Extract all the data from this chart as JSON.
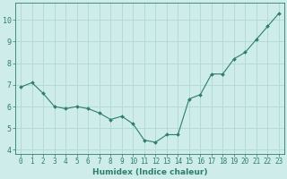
{
  "x": [
    0,
    1,
    2,
    3,
    4,
    5,
    6,
    7,
    8,
    9,
    10,
    11,
    12,
    13,
    14,
    15,
    16,
    17,
    18,
    19,
    20,
    21,
    22,
    23
  ],
  "y": [
    6.9,
    7.1,
    6.6,
    6.0,
    5.9,
    6.0,
    5.9,
    5.7,
    5.4,
    5.55,
    5.2,
    4.45,
    4.35,
    4.7,
    4.7,
    6.35,
    6.55,
    7.5,
    7.5,
    8.2,
    8.5,
    9.1,
    9.7,
    10.3
  ],
  "title": "",
  "xlabel": "Humidex (Indice chaleur)",
  "ylabel": "",
  "ylim": [
    3.8,
    10.8
  ],
  "xlim": [
    -0.5,
    23.5
  ],
  "line_color": "#2e7d6e",
  "marker_color": "#2e7d6e",
  "bg_color": "#ceecea",
  "grid_color": "#b0d8d4",
  "axis_color": "#2e7d6e",
  "label_color": "#2e7d6e",
  "yticks": [
    4,
    5,
    6,
    7,
    8,
    9,
    10
  ],
  "xticks": [
    0,
    1,
    2,
    3,
    4,
    5,
    6,
    7,
    8,
    9,
    10,
    11,
    12,
    13,
    14,
    15,
    16,
    17,
    18,
    19,
    20,
    21,
    22,
    23
  ],
  "tick_fontsize": 5.5,
  "xlabel_fontsize": 6.5
}
